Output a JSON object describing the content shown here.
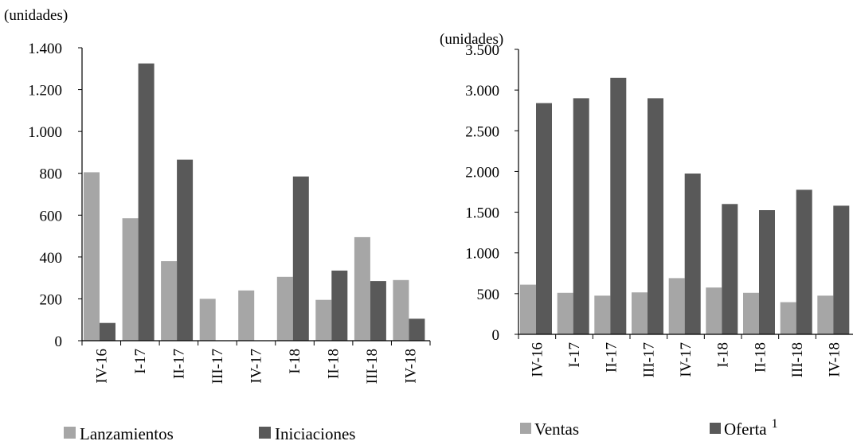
{
  "colors": {
    "light": "#a6a6a6",
    "dark": "#595959",
    "axis": "#000000"
  },
  "chart_data": [
    {
      "type": "bar",
      "unit_label": "(unidades)",
      "categories": [
        "IV-16",
        "I-17",
        "II-17",
        "III-17",
        "IV-17",
        "I-18",
        "II-18",
        "III-18",
        "IV-18"
      ],
      "ylim": [
        0,
        1400
      ],
      "yticks": [
        0,
        200,
        400,
        600,
        800,
        1000,
        1200,
        1400
      ],
      "ytick_labels": [
        "0",
        "200",
        "400",
        "600",
        "800",
        "1.000",
        "1.200",
        "1.400"
      ],
      "grid": false,
      "legend": "bottom",
      "series": [
        {
          "name": "Lanzamientos",
          "color": "#a6a6a6",
          "values": [
            805,
            585,
            380,
            200,
            240,
            305,
            195,
            495,
            290
          ]
        },
        {
          "name": "Iniciaciones",
          "color": "#595959",
          "values": [
            85,
            1325,
            865,
            0,
            0,
            785,
            335,
            285,
            105
          ]
        }
      ]
    },
    {
      "type": "bar",
      "unit_label": "(unidades)",
      "categories": [
        "IV-16",
        "I-17",
        "II-17",
        "III-17",
        "IV-17",
        "I-18",
        "II-18",
        "III-18",
        "IV-18"
      ],
      "ylim": [
        0,
        3500
      ],
      "yticks": [
        0,
        500,
        1000,
        1500,
        2000,
        2500,
        3000,
        3500
      ],
      "ytick_labels": [
        "0",
        "500",
        "1.000",
        "1.500",
        "2.000",
        "2.500",
        "3.000",
        "3.500"
      ],
      "grid": false,
      "legend": "bottom",
      "series": [
        {
          "name": "Ventas",
          "color": "#a6a6a6",
          "values": [
            610,
            510,
            475,
            515,
            690,
            575,
            510,
            395,
            475
          ]
        },
        {
          "name": "Oferta",
          "superscript": "1",
          "color": "#595959",
          "values": [
            2840,
            2900,
            3150,
            2900,
            1975,
            1600,
            1525,
            1775,
            1580
          ]
        }
      ]
    }
  ]
}
